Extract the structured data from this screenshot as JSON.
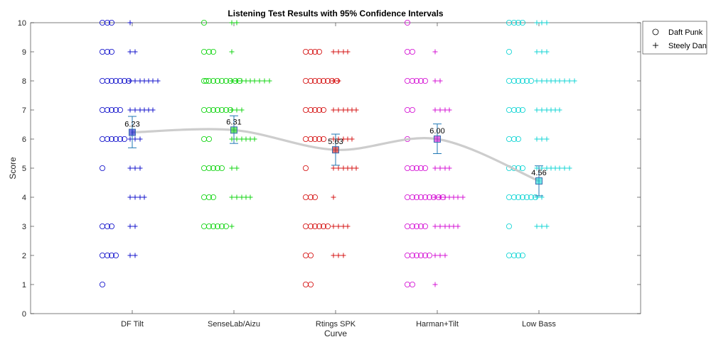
{
  "chart_data": {
    "type": "scatter",
    "title": "Listening Test Results with 95% Confidence Intervals",
    "xlabel": "Curve",
    "ylabel": "Score",
    "ylim": [
      0,
      10
    ],
    "yticks": [
      0,
      1,
      2,
      3,
      4,
      5,
      6,
      7,
      8,
      9,
      10
    ],
    "categories": [
      "DF Tilt",
      "SenseLab/Aizu",
      "Rtings SPK",
      "Harman+Tilt",
      "Low Bass"
    ],
    "category_colors": [
      "#0000c8",
      "#00d200",
      "#d20000",
      "#d200d2",
      "#00d2d2"
    ],
    "means": [
      6.23,
      6.31,
      5.63,
      6.0,
      4.56
    ],
    "mean_labels": [
      "6.23",
      "6.31",
      "5.63",
      "6.00",
      "4.56"
    ],
    "ci_low": [
      5.7,
      5.85,
      5.1,
      5.5,
      4.05
    ],
    "ci_high": [
      6.78,
      6.8,
      6.17,
      6.52,
      5.08
    ],
    "trend_line_color": "#c8c8c8",
    "series": [
      {
        "name": "Daft Punk",
        "marker": "circle",
        "points": [
          [
            [
              10,
              3
            ],
            [
              9,
              3
            ],
            [
              8,
              7
            ],
            [
              7,
              5
            ],
            [
              6,
              6
            ],
            [
              5,
              1
            ],
            [
              3,
              3
            ],
            [
              2,
              4
            ],
            [
              1,
              1
            ]
          ],
          [
            [
              10,
              1
            ],
            [
              9,
              3
            ],
            [
              8,
              10
            ],
            [
              7,
              7
            ],
            [
              6,
              2
            ],
            [
              5,
              5
            ],
            [
              4,
              3
            ],
            [
              3,
              6
            ]
          ],
          [
            [
              9,
              4
            ],
            [
              8,
              8
            ],
            [
              7,
              5
            ],
            [
              6,
              5
            ],
            [
              5,
              1
            ],
            [
              4,
              3
            ],
            [
              3,
              6
            ],
            [
              2,
              2
            ],
            [
              1,
              2
            ]
          ],
          [
            [
              10,
              1
            ],
            [
              9,
              2
            ],
            [
              8,
              5
            ],
            [
              7,
              2
            ],
            [
              6,
              1
            ],
            [
              5,
              5
            ],
            [
              4,
              9
            ],
            [
              3,
              5
            ],
            [
              2,
              6
            ],
            [
              1,
              2
            ]
          ],
          [
            [
              10,
              4
            ],
            [
              9,
              1
            ],
            [
              8,
              6
            ],
            [
              7,
              4
            ],
            [
              6,
              3
            ],
            [
              5,
              4
            ],
            [
              4,
              7
            ],
            [
              3,
              1
            ],
            [
              2,
              4
            ]
          ]
        ]
      },
      {
        "name": "Steely Dan",
        "marker": "plus",
        "points": [
          [
            [
              10,
              1
            ],
            [
              9,
              2
            ],
            [
              8,
              7
            ],
            [
              7,
              6
            ],
            [
              6,
              3
            ],
            [
              5,
              3
            ],
            [
              4,
              4
            ],
            [
              3,
              2
            ],
            [
              2,
              2
            ]
          ],
          [
            [
              10,
              2
            ],
            [
              9,
              1
            ],
            [
              8,
              9
            ],
            [
              7,
              3
            ],
            [
              6,
              6
            ],
            [
              5,
              2
            ],
            [
              4,
              5
            ],
            [
              3,
              1
            ]
          ],
          [
            [
              9,
              4
            ],
            [
              8,
              2
            ],
            [
              7,
              6
            ],
            [
              6,
              5
            ],
            [
              5,
              6
            ],
            [
              4,
              1
            ],
            [
              3,
              4
            ],
            [
              2,
              3
            ]
          ],
          [
            [
              9,
              1
            ],
            [
              8,
              2
            ],
            [
              7,
              4
            ],
            [
              5,
              4
            ],
            [
              4,
              7
            ],
            [
              3,
              6
            ],
            [
              2,
              3
            ],
            [
              1,
              1
            ]
          ],
          [
            [
              10,
              3
            ],
            [
              9,
              3
            ],
            [
              8,
              9
            ],
            [
              7,
              6
            ],
            [
              6,
              3
            ],
            [
              5,
              8
            ],
            [
              4,
              2
            ],
            [
              3,
              3
            ]
          ]
        ]
      }
    ],
    "legend": {
      "position": "outside-top-right",
      "entries": [
        {
          "label": "Daft Punk",
          "marker": "circle"
        },
        {
          "label": "Steely Dan",
          "marker": "plus"
        }
      ]
    }
  }
}
